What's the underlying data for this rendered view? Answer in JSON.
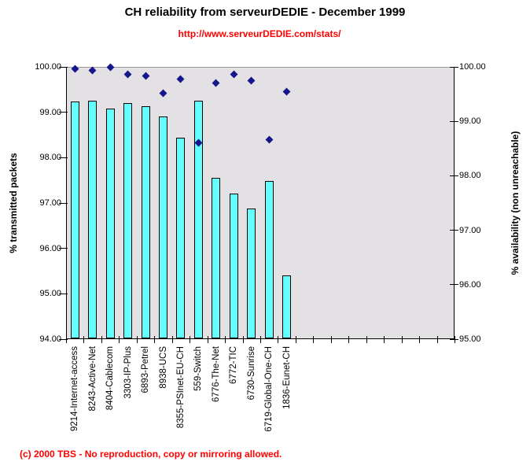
{
  "header": {
    "title": "CH reliability from serveurDEDIE - December 1999",
    "url": "http://www.serveurDEDIE.com/stats/"
  },
  "footer": {
    "copyright": "(c) 2000 TBS - No reproduction, copy or mirroring allowed."
  },
  "colors": {
    "bar_fill": "#66FFFF",
    "bar_border": "#000000",
    "marker_navy": "#16168C",
    "plot_background": "#E3E1E3",
    "accent_red": "#FF0000"
  },
  "chart_data": {
    "type": "bar+scatter",
    "title": "CH reliability from serveurDEDIE - December 1999",
    "subtitle": "http://www.serveurDEDIE.com/stats/",
    "grid": false,
    "legend": "none",
    "x_slots": 22,
    "categories": [
      "9214-Internet-access",
      "8243-Active-Net",
      "8404-Cablecom",
      "3303-IP-Plus",
      "6893-Petrel",
      "8938-UCS",
      "8355-PSInet-EU-CH",
      "559-Switch",
      "6776-The-Net",
      "6772-TIC",
      "6730-Sunrise",
      "6719-Global-One-CH",
      "1836-Eunet-CH"
    ],
    "series": [
      {
        "name": "% transmitted packets",
        "type": "bar",
        "axis": "left",
        "color": "#66FFFF",
        "values": [
          99.23,
          99.25,
          99.08,
          99.21,
          99.13,
          98.9,
          98.44,
          99.25,
          97.55,
          97.21,
          96.88,
          97.49,
          95.4
        ]
      },
      {
        "name": "% availability (non unreachable)",
        "type": "scatter",
        "marker": "diamond",
        "axis": "right",
        "color": "#16168C",
        "values": [
          99.96,
          99.93,
          99.99,
          99.86,
          99.83,
          99.52,
          99.78,
          98.61,
          99.71,
          99.86,
          99.74,
          98.67,
          99.54
        ]
      }
    ],
    "left_axis": {
      "title": "% transmitted packets",
      "min": 94,
      "max": 100,
      "tick_labels": [
        "100.00",
        "99.00",
        "98.00",
        "97.00",
        "96.00",
        "95.00",
        "94.00"
      ]
    },
    "right_axis": {
      "title": "% availability (non unreachable)",
      "min": 95,
      "max": 100,
      "tick_labels": [
        "100.00",
        "99.00",
        "98.00",
        "97.00",
        "96.00",
        "95.00"
      ]
    }
  }
}
